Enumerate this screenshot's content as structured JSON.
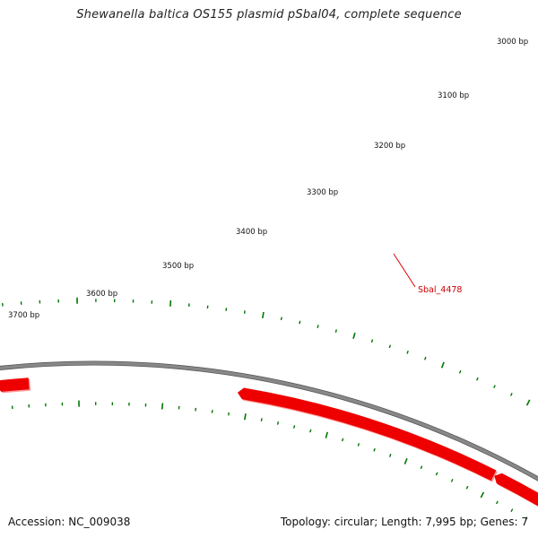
{
  "title": "Shewanella baltica OS155 plasmid pSbal04, complete sequence",
  "footer": {
    "accession": "Accession: NC_009038",
    "summary": "Topology: circular; Length: 7,995 bp; Genes: 7"
  },
  "scale": {
    "tick_labels": [
      "3000 bp",
      "3100 bp",
      "3200 bp",
      "3300 bp",
      "3400 bp",
      "3500 bp",
      "3600 bp",
      "3700 bp"
    ]
  },
  "genes": [
    {
      "label": "Sbal_4478",
      "color": "#ee0000",
      "labeled": true
    },
    {
      "label": "",
      "color": "#ee0000",
      "labeled": false
    },
    {
      "label": "",
      "color": "#ee0000",
      "labeled": false
    }
  ],
  "colors": {
    "backbone": "#888888",
    "ticks": "#007700",
    "gene": "#ee0000",
    "gene_shadow": "#ff9999"
  }
}
